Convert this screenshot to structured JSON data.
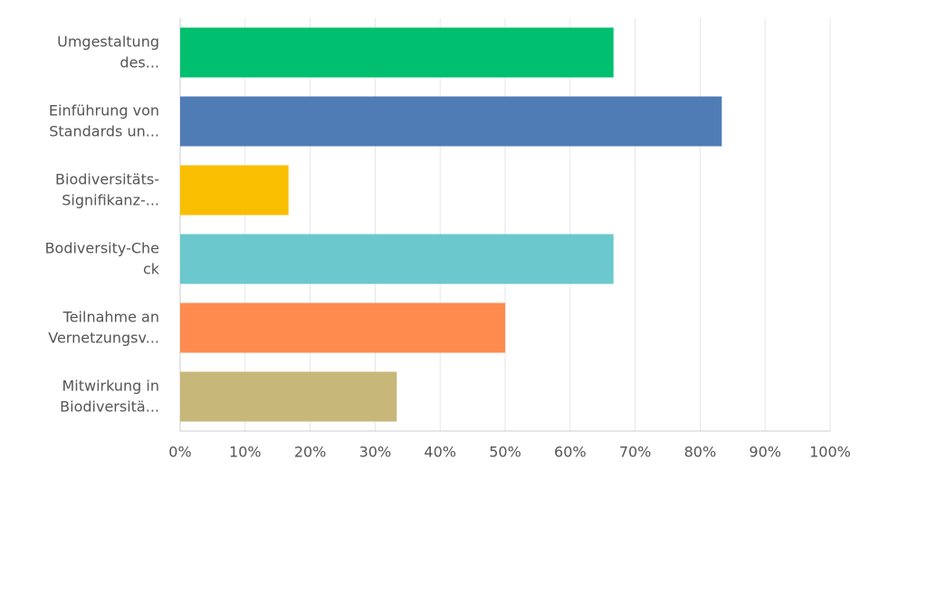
{
  "chart_data": {
    "type": "hbar",
    "categories": [
      [
        "Umgestaltung",
        "des..."
      ],
      [
        "Einführung von",
        "Standards un..."
      ],
      [
        "Biodiversitäts-",
        "Signifikanz-..."
      ],
      [
        "Bodiversity-Che",
        "ck"
      ],
      [
        "Teilnahme an",
        "Vernetzungsv..."
      ],
      [
        "Mitwirkung in",
        "Biodiversitä..."
      ]
    ],
    "values": [
      66.67,
      83.33,
      16.67,
      66.67,
      50,
      33.33
    ],
    "colors": [
      "#00bf6f",
      "#507cb6",
      "#f9be00",
      "#6bc8cd",
      "#ff8b4f",
      "#c7b879"
    ],
    "xlim": [
      0,
      100
    ],
    "xticks": [
      {
        "value": 0,
        "label": "0%"
      },
      {
        "value": 10,
        "label": "10%"
      },
      {
        "value": 20,
        "label": "20%"
      },
      {
        "value": 30,
        "label": "30%"
      },
      {
        "value": 40,
        "label": "40%"
      },
      {
        "value": 50,
        "label": "50%"
      },
      {
        "value": 60,
        "label": "60%"
      },
      {
        "value": 70,
        "label": "70%"
      },
      {
        "value": 80,
        "label": "80%"
      },
      {
        "value": 90,
        "label": "90%"
      },
      {
        "value": 100,
        "label": "100%"
      }
    ],
    "grid": true
  }
}
